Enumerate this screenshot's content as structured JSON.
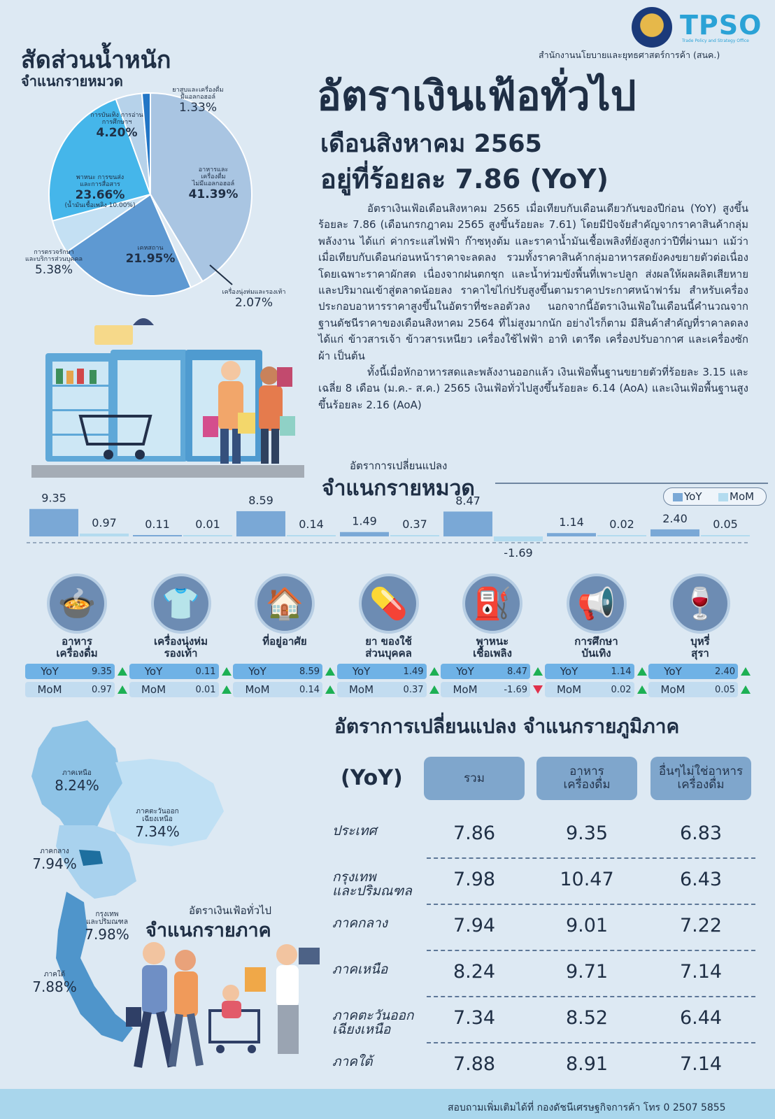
{
  "header": {
    "tpso_logo": "TPSO",
    "tpso_sub": "Trade Policy and Strategy Office",
    "agency": "สำนักงานนโยบายและยุทธศาสตร์การค้า (สนค.)"
  },
  "title": {
    "main": "อัตราเงินเฟ้อทั่วไป",
    "month": "เดือนสิงหาคม 2565",
    "rate": "อยู่ที่ร้อยละ 7.86 (YoY)"
  },
  "body": {
    "p1": "อัตราเงินเฟ้อเดือนสิงหาคม 2565 เมื่อเทียบกับเดือนเดียวกันของปีก่อน (YoY) สูงขึ้นร้อยละ 7.86 (เดือนกรกฎาคม 2565 สูงขึ้นร้อยละ 7.61) โดยมีปัจจัยสำคัญจากราคาสินค้ากลุ่มพลังงาน ได้แก่ ค่ากระแสไฟฟ้า ก๊าซหุงต้ม และราคาน้ำมันเชื้อเพลิงที่ยังสูงกว่าปีที่ผ่านมา แม้ว่าเมื่อเทียบกับเดือนก่อนหน้าราคาจะลดลง รวมทั้งราคาสินค้ากลุ่มอาหารสดยังคงขยายตัวต่อเนื่อง โดยเฉพาะราคาผักสด เนื่องจากฝนตกชุก และน้ำท่วมขังพื้นที่เพาะปลูก ส่งผลให้ผลผลิตเสียหายและปริมาณเข้าสู่ตลาดน้อยลง ราคาไข่ไก่ปรับสูงขึ้นตามราคาประกาศหน้าฟาร์ม สำหรับเครื่องประกอบอาหารราคาสูงขึ้นในอัตราที่ชะลอตัวลง นอกจากนี้อัตราเงินเฟ้อในเดือนนี้คำนวณจากฐานดัชนีราคาของเดือนสิงหาคม 2564 ที่ไม่สูงมากนัก อย่างไรก็ตาม มีสินค้าสำคัญที่ราคาลดลง ได้แก่ ข้าวสารเจ้า ข้าวสารเหนียว เครื่องใช้ไฟฟ้า อาทิ เตารีด เครื่องปรับอากาศ และเครื่องซักผ้า เป็นต้น",
    "p2": "ทั้งนี้เมื่อหักอาหารสดและพลังงานออกแล้ว เงินเฟ้อพื้นฐานขยายตัวที่ร้อยละ 3.15 และเฉลี่ย 8 เดือน (ม.ค.- ส.ค.) 2565 เงินเฟ้อทั่วไปสูงขึ้นร้อยละ 6.14 (AoA) และเงินเฟ้อพื้นฐานสูงขึ้นร้อยละ 2.16 (AoA)"
  },
  "pie": {
    "title": "สัดส่วนน้ำหนัก",
    "subtitle": "จำแนกรายหมวด",
    "slices": [
      {
        "name": "อาหารและเครื่องดื่มไม่มีแอลกอฮอล์",
        "value": 41.39,
        "label": "41.39%",
        "color": "#a9c5e2"
      },
      {
        "name": "เครื่องนุ่งห่มและรองเท้า",
        "value": 2.07,
        "label": "2.07%",
        "color": "#dde9f3"
      },
      {
        "name": "เคหสถาน",
        "value": 21.95,
        "label": "21.95%",
        "color": "#5e99d2"
      },
      {
        "name": "การตรวจรักษาและบริการส่วนบุคคล",
        "value": 5.38,
        "label": "5.38%",
        "color": "#c4e0f3"
      },
      {
        "name": "พาหนะ การขนส่งและการสื่อสาร",
        "value": 23.66,
        "label": "23.66%",
        "color": "#45b6ea"
      },
      {
        "name": "การบันเทิง การอ่าน การศึกษาฯ",
        "value": 4.2,
        "label": "4.20%",
        "color": "#b6d2ea"
      },
      {
        "name": "ยาสูบและเครื่องดื่มมีแอลกอฮอล์",
        "value": 1.33,
        "label": "1.33%",
        "color": "#2276c6"
      }
    ],
    "labels": {
      "food_a": "อาหารและ",
      "food_b": "เครื่องดื่ม",
      "food_c": "ไม่มีแอลกอฮอล์",
      "cloth": "เครื่องนุ่งห่มและรองเท้า",
      "house": "เคหสถาน",
      "health_a": "การตรวจรักษา",
      "health_b": "และบริการส่วนบุคคล",
      "trans_a": "พาหนะ การขนส่ง",
      "trans_b": "และการสื่อสาร",
      "trans_c": "(น้ำมันเชื้อเพลิง 10.00%)",
      "ent_a": "การบันเทิง การอ่าน",
      "ent_b": "การศึกษาฯ",
      "tob_a": "ยาสูบและเครื่องดื่ม",
      "tob_b": "มีแอลกอฮอล์"
    }
  },
  "bar_section": {
    "pre_title": "อัตราการเปลี่ยนแปลง",
    "title": "จำแนกรายหมวด",
    "legend_yoy": "YoY",
    "legend_mom": "MoM",
    "color_yoy": "#7aa8d6",
    "color_mom": "#b3dbef"
  },
  "chart_data": {
    "type": "bar",
    "title": "อัตราการเปลี่ยนแปลง จำแนกรายหมวด",
    "categories": [
      "อาหาร เครื่องดื่ม",
      "เครื่องนุ่งห่ม รองเท้า",
      "ที่อยู่อาศัย",
      "ยา ของใช้ ส่วนบุคคล",
      "พาหนะ เชื้อเพลิง",
      "การศึกษา บันเทิง",
      "บุหรี่ สุรา"
    ],
    "series": [
      {
        "name": "YoY",
        "values": [
          9.35,
          0.11,
          8.59,
          1.49,
          8.47,
          1.14,
          2.4
        ]
      },
      {
        "name": "MoM",
        "values": [
          0.97,
          0.01,
          0.14,
          0.37,
          -1.69,
          0.02,
          0.05
        ]
      }
    ],
    "labels": {
      "YoY": [
        "9.35",
        "0.11",
        "8.59",
        "1.49",
        "8.47",
        "1.14",
        "2.40"
      ],
      "MoM": [
        "0.97",
        "0.01",
        "0.14",
        "0.37",
        "-1.69",
        "0.02",
        "0.05"
      ]
    },
    "legend": "top-right"
  },
  "categories": [
    {
      "l1": "อาหาร",
      "l2": "เครื่องดื่ม",
      "icon": "🍲"
    },
    {
      "l1": "เครื่องนุ่งห่ม",
      "l2": "รองเท้า",
      "icon": "👕"
    },
    {
      "l1": "ที่อยู่อาศัย",
      "l2": "",
      "icon": "🏠"
    },
    {
      "l1": "ยา ของใช้",
      "l2": "ส่วนบุคคล",
      "icon": "💊"
    },
    {
      "l1": "พาหนะ",
      "l2": "เชื้อเพลิง",
      "icon": "⛽"
    },
    {
      "l1": "การศึกษา",
      "l2": "บันเทิง",
      "icon": "📢"
    },
    {
      "l1": "บุหรี่",
      "l2": "สุรา",
      "icon": "🍷"
    }
  ],
  "pill_yoy": "YoY",
  "pill_mom": "MoM",
  "regional": {
    "title": "อัตราการเปลี่ยนแปลง จำแนกรายภูมิภาค",
    "yoy_label": "(YoY)",
    "col_total": "รวม",
    "col_food_a": "อาหาร",
    "col_food_b": "เครื่องดื่ม",
    "col_other_a": "อื่นๆไม่ใช่อาหาร",
    "col_other_b": "เครื่องดื่ม",
    "rows": [
      {
        "name_a": "ประเทศ",
        "name_b": "",
        "total": "7.86",
        "food": "9.35",
        "other": "6.83"
      },
      {
        "name_a": "กรุงเทพ",
        "name_b": "และปริมณฑล",
        "total": "7.98",
        "food": "10.47",
        "other": "6.43"
      },
      {
        "name_a": "ภาคกลาง",
        "name_b": "",
        "total": "7.94",
        "food": "9.01",
        "other": "7.22"
      },
      {
        "name_a": "ภาคเหนือ",
        "name_b": "",
        "total": "8.24",
        "food": "9.71",
        "other": "7.14"
      },
      {
        "name_a": "ภาคตะวันออก",
        "name_b": "เฉียงเหนือ",
        "total": "7.34",
        "food": "8.52",
        "other": "6.44"
      },
      {
        "name_a": "ภาคใต้",
        "name_b": "",
        "total": "7.88",
        "food": "8.91",
        "other": "7.14"
      }
    ]
  },
  "map": {
    "title1": "อัตราเงินเฟ้อทั่วไป",
    "title2": "จำแนกรายภาค",
    "north_n": "ภาคเหนือ",
    "north_v": "8.24%",
    "ne_n1": "ภาคตะวันออก",
    "ne_n2": "เฉียงเหนือ",
    "ne_v": "7.34%",
    "central_n": "ภาคกลาง",
    "central_v": "7.94%",
    "bkk_n1": "กรุงเทพ",
    "bkk_n2": "และปริมณฑล",
    "bkk_v": "7.98%",
    "south_n": "ภาคใต้",
    "south_v": "7.88%"
  },
  "footer": "สอบถามเพิ่มเติมได้ที่ กองดัชนีเศรษฐกิจการค้า  โทร 0 2507 5855"
}
